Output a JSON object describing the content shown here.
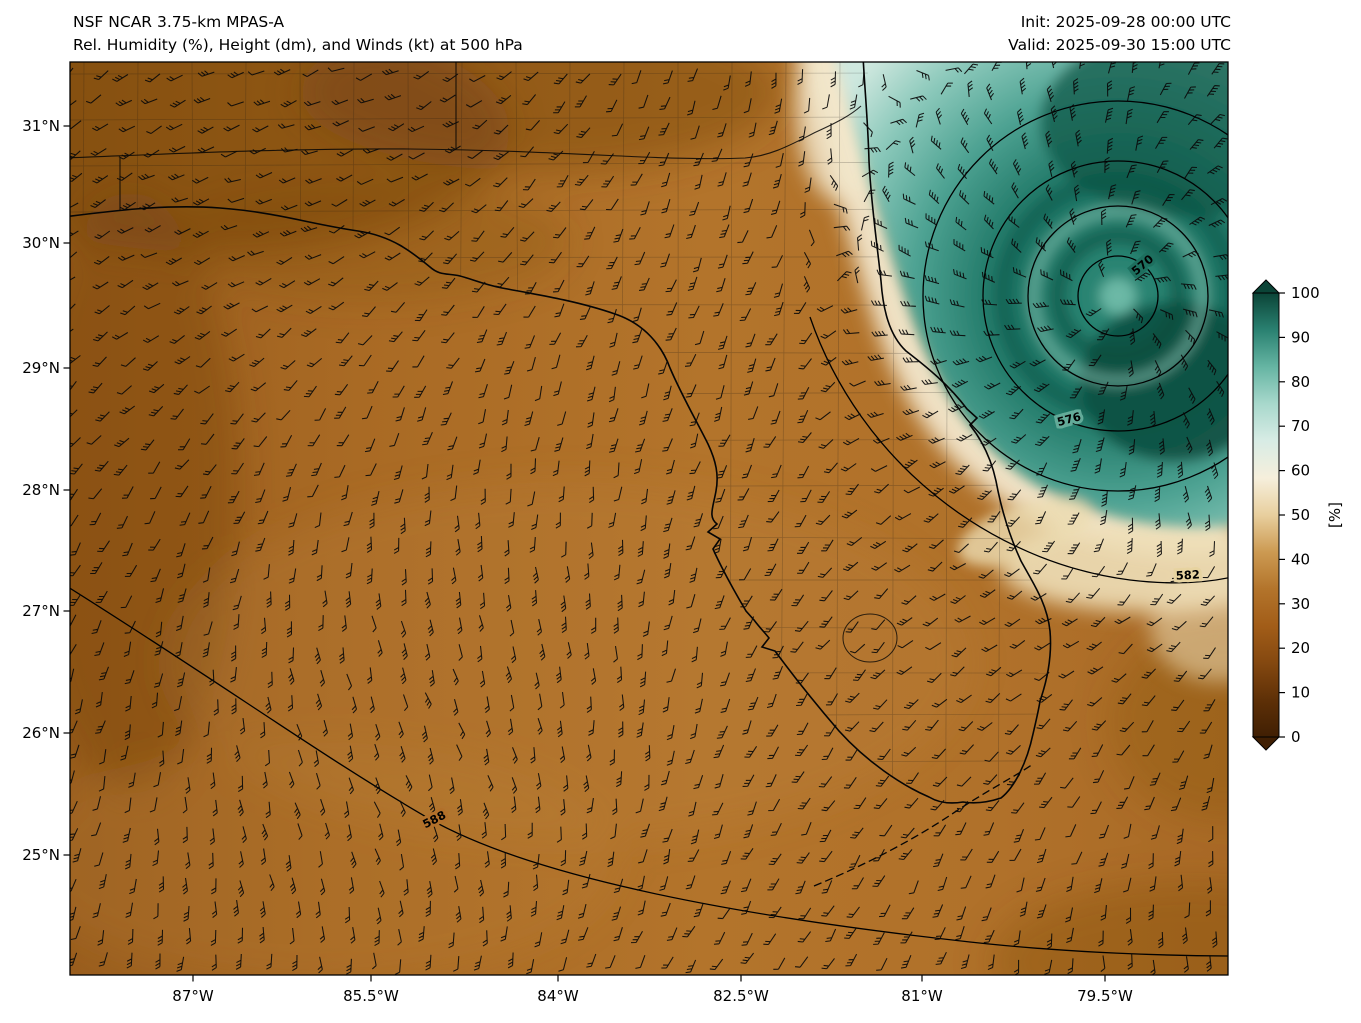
{
  "header": {
    "title": "NSF NCAR 3.75-km MPAS-A",
    "subtitle": "Rel. Humidity (%), Height (dm), and Winds (kt) at 500 hPa",
    "init": "Init: 2025-09-28 00:00 UTC",
    "valid": "Valid: 2025-09-30 15:00 UTC"
  },
  "chart_data": {
    "type": "heatmap",
    "title": "NSF NCAR 3.75-km MPAS-A",
    "subtitle": "Rel. Humidity (%), Height (dm), and Winds (kt) at 500 hPa",
    "init_time": "2025-09-28 00:00 UTC",
    "valid_time": "2025-09-30 15:00 UTC",
    "variable": "Relative Humidity",
    "units": "%",
    "level": "500 hPa",
    "overlays": [
      "geopotential height contours (dm)",
      "wind barbs (kt)",
      "Florida coastline and county boundaries"
    ],
    "x_axis": {
      "ticks": [
        "87°W",
        "85.5°W",
        "84°W",
        "82.5°W",
        "81°W",
        "79.5°W"
      ],
      "range_deg_west": [
        88.0,
        78.5
      ]
    },
    "y_axis": {
      "ticks": [
        "31°N",
        "30°N",
        "29°N",
        "28°N",
        "27°N",
        "26°N",
        "25°N"
      ],
      "range_deg_north": [
        24.0,
        31.5
      ]
    },
    "colorbar": {
      "label": "[%]",
      "ticks": [
        0,
        10,
        20,
        30,
        40,
        50,
        60,
        70,
        80,
        90,
        100
      ],
      "colors": [
        "#401f03",
        "#5e3007",
        "#844810",
        "#a25d18",
        "#b3742b",
        "#cc9a52",
        "#e8cf9e",
        "#f6efdc",
        "#d8ece5",
        "#a8d8cc",
        "#66b5a3",
        "#2a8171",
        "#0b4437"
      ]
    },
    "height_contours_dm": [
      570,
      576,
      582,
      588
    ],
    "notable_features": [
      "closed cyclonic circulation with RH near 100% northeast of Florida over the Atlantic",
      "very dry air (RH ~10-30%) over the Gulf of Mexico and most of Florida",
      "570 dm closed low center near 29.5N 79W"
    ]
  }
}
